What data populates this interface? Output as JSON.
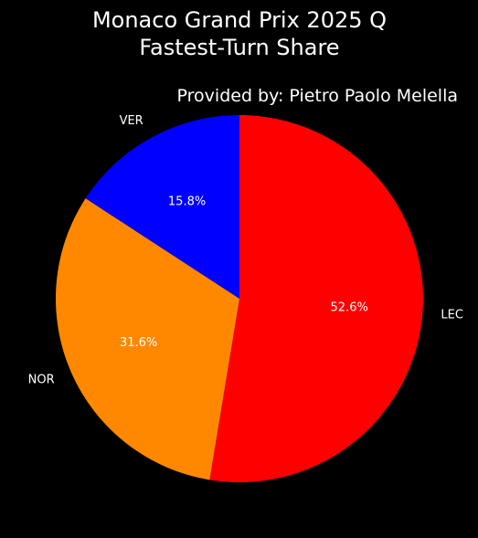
{
  "chart_data": {
    "type": "pie",
    "title_lines": [
      "Monaco Grand Prix 2025 Q",
      "Fastest-Turn Share"
    ],
    "subtitle": "Provided by: Pietro Paolo Melella",
    "start_angle_deg": 90,
    "direction": "clockwise",
    "slices": [
      {
        "label": "LEC",
        "value": 52.6,
        "pct_label": "52.6%",
        "color": "#ff0000"
      },
      {
        "label": "NOR",
        "value": 31.6,
        "pct_label": "31.6%",
        "color": "#ff8800"
      },
      {
        "label": "VER",
        "value": 15.8,
        "pct_label": "15.8%",
        "color": "#0000ff"
      }
    ],
    "background": "#000000",
    "text_color": "#ffffff"
  }
}
